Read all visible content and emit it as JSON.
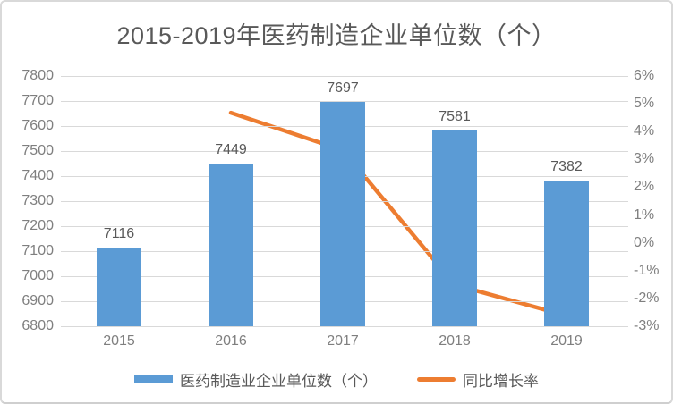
{
  "title": "2015-2019年医药制造企业单位数（个）",
  "colors": {
    "bar": "#5b9bd5",
    "line": "#ed7d31",
    "gridline": "#d9d9d9",
    "tick_text": "#7f7f7f",
    "label_text": "#595959",
    "card_border": "#d9d9d9",
    "background": "#ffffff"
  },
  "chart_data": {
    "type": "bar",
    "subtype": "combo-bar-line-dual-axis",
    "title": "2015-2019年医药制造企业单位数（个）",
    "categories": [
      "2015",
      "2016",
      "2017",
      "2018",
      "2019"
    ],
    "series": [
      {
        "name": "医药制造业企业单位数（个）",
        "type": "bar",
        "axis": "left",
        "color": "#5b9bd5",
        "values": [
          7116,
          7449,
          7697,
          7581,
          7382
        ],
        "data_labels": [
          "7116",
          "7449",
          "7697",
          "7581",
          "7382"
        ]
      },
      {
        "name": "同比增长率",
        "type": "line",
        "axis": "right",
        "color": "#ed7d31",
        "values": [
          null,
          4.68,
          3.33,
          -1.51,
          -2.62
        ]
      }
    ],
    "left_axis": {
      "min": 6800,
      "max": 7800,
      "step": 100,
      "tick_labels": [
        "7800",
        "7700",
        "7600",
        "7500",
        "7400",
        "7300",
        "7200",
        "7100",
        "7000",
        "6900",
        "6800"
      ]
    },
    "right_axis": {
      "min": -3,
      "max": 6,
      "step": 1,
      "tick_labels": [
        "6%",
        "5%",
        "4%",
        "3%",
        "2%",
        "1%",
        "0%",
        "-1%",
        "-2%",
        "-3%"
      ]
    },
    "grid": true,
    "legend_position": "bottom"
  },
  "legend": {
    "items": [
      {
        "label": "医药制造业企业单位数（个）",
        "swatch": "bar",
        "color": "#5b9bd5"
      },
      {
        "label": "同比增长率",
        "swatch": "line",
        "color": "#ed7d31"
      }
    ]
  }
}
